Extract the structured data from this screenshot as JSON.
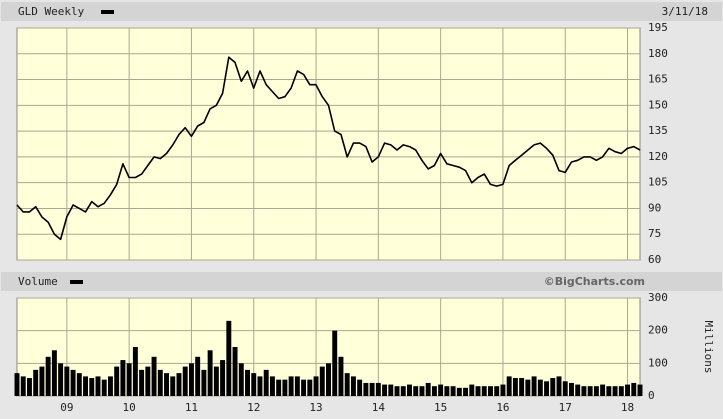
{
  "chart_data": [
    {
      "type": "line",
      "date_label": "3/11/18",
      "x": [
        2008.2,
        2008.3,
        2008.4,
        2008.5,
        2008.6,
        2008.7,
        2008.8,
        2008.9,
        2009.0,
        2009.1,
        2009.2,
        2009.3,
        2009.4,
        2009.5,
        2009.6,
        2009.7,
        2009.8,
        2009.9,
        2010.0,
        2010.1,
        2010.2,
        2010.3,
        2010.4,
        2010.5,
        2010.6,
        2010.7,
        2010.8,
        2010.9,
        2011.0,
        2011.1,
        2011.2,
        2011.3,
        2011.4,
        2011.5,
        2011.6,
        2011.7,
        2011.8,
        2011.9,
        2012.0,
        2012.1,
        2012.2,
        2012.3,
        2012.4,
        2012.5,
        2012.6,
        2012.7,
        2012.8,
        2012.9,
        2013.0,
        2013.1,
        2013.2,
        2013.3,
        2013.4,
        2013.5,
        2013.6,
        2013.7,
        2013.8,
        2013.9,
        2014.0,
        2014.1,
        2014.2,
        2014.3,
        2014.4,
        2014.5,
        2014.6,
        2014.7,
        2014.8,
        2014.9,
        2015.0,
        2015.1,
        2015.2,
        2015.3,
        2015.4,
        2015.5,
        2015.6,
        2015.7,
        2015.8,
        2015.9,
        2016.0,
        2016.1,
        2016.2,
        2016.3,
        2016.4,
        2016.5,
        2016.6,
        2016.7,
        2016.8,
        2016.9,
        2017.0,
        2017.1,
        2017.2,
        2017.3,
        2017.4,
        2017.5,
        2017.6,
        2017.7,
        2017.8,
        2017.9,
        2018.0,
        2018.1,
        2018.2
      ],
      "series": [
        {
          "name": "GLD Weekly",
          "color": "#000000",
          "values": [
            92,
            88,
            88,
            91,
            85,
            82,
            75,
            72,
            85,
            92,
            90,
            88,
            94,
            91,
            93,
            98,
            104,
            116,
            108,
            108,
            110,
            115,
            120,
            119,
            122,
            127,
            133,
            137,
            132,
            138,
            140,
            148,
            150,
            157,
            178,
            175,
            164,
            170,
            160,
            170,
            162,
            158,
            154,
            155,
            160,
            170,
            168,
            162,
            162,
            155,
            150,
            135,
            133,
            120,
            128,
            128,
            126,
            117,
            120,
            128,
            127,
            124,
            127,
            126,
            124,
            118,
            113,
            115,
            122,
            116,
            115,
            114,
            112,
            105,
            108,
            110,
            104,
            103,
            104,
            115,
            118,
            121,
            124,
            127,
            128,
            125,
            121,
            112,
            111,
            117,
            118,
            120,
            120,
            118,
            120,
            125,
            123,
            122,
            125,
            126,
            124
          ]
        }
      ],
      "xlim": [
        2008.2,
        2018.2
      ],
      "ylim": [
        60,
        195
      ],
      "yticks": [
        60,
        75,
        90,
        105,
        120,
        135,
        150,
        165,
        180,
        195
      ],
      "grid": true
    },
    {
      "type": "bar",
      "source": "©BigCharts.com",
      "ylabel": "Millions",
      "x": [
        2008.2,
        2008.3,
        2008.4,
        2008.5,
        2008.6,
        2008.7,
        2008.8,
        2008.9,
        2009.0,
        2009.1,
        2009.2,
        2009.3,
        2009.4,
        2009.5,
        2009.6,
        2009.7,
        2009.8,
        2009.9,
        2010.0,
        2010.1,
        2010.2,
        2010.3,
        2010.4,
        2010.5,
        2010.6,
        2010.7,
        2010.8,
        2010.9,
        2011.0,
        2011.1,
        2011.2,
        2011.3,
        2011.4,
        2011.5,
        2011.6,
        2011.7,
        2011.8,
        2011.9,
        2012.0,
        2012.1,
        2012.2,
        2012.3,
        2012.4,
        2012.5,
        2012.6,
        2012.7,
        2012.8,
        2012.9,
        2013.0,
        2013.1,
        2013.2,
        2013.3,
        2013.4,
        2013.5,
        2013.6,
        2013.7,
        2013.8,
        2013.9,
        2014.0,
        2014.1,
        2014.2,
        2014.3,
        2014.4,
        2014.5,
        2014.6,
        2014.7,
        2014.8,
        2014.9,
        2015.0,
        2015.1,
        2015.2,
        2015.3,
        2015.4,
        2015.5,
        2015.6,
        2015.7,
        2015.8,
        2015.9,
        2016.0,
        2016.1,
        2016.2,
        2016.3,
        2016.4,
        2016.5,
        2016.6,
        2016.7,
        2016.8,
        2016.9,
        2017.0,
        2017.1,
        2017.2,
        2017.3,
        2017.4,
        2017.5,
        2017.6,
        2017.7,
        2017.8,
        2017.9,
        2018.0,
        2018.1,
        2018.2
      ],
      "series": [
        {
          "name": "Volume",
          "color": "#000000",
          "values": [
            70,
            60,
            55,
            80,
            90,
            120,
            140,
            100,
            90,
            80,
            70,
            60,
            55,
            60,
            50,
            60,
            90,
            110,
            100,
            150,
            80,
            90,
            120,
            80,
            70,
            60,
            70,
            90,
            100,
            120,
            80,
            140,
            90,
            110,
            230,
            150,
            100,
            80,
            70,
            60,
            80,
            60,
            50,
            50,
            60,
            60,
            50,
            50,
            60,
            90,
            100,
            200,
            120,
            70,
            60,
            50,
            40,
            40,
            40,
            35,
            35,
            30,
            30,
            35,
            30,
            30,
            40,
            30,
            35,
            30,
            30,
            25,
            25,
            35,
            30,
            30,
            30,
            30,
            35,
            60,
            55,
            55,
            50,
            60,
            50,
            45,
            55,
            60,
            45,
            40,
            35,
            30,
            30,
            30,
            35,
            30,
            30,
            30,
            35,
            40,
            35
          ]
        }
      ],
      "xlim": [
        2008.2,
        2018.2
      ],
      "ylim": [
        0,
        300
      ],
      "yticks": [
        0,
        100,
        200,
        300
      ],
      "xticks": [
        {
          "value": 2009,
          "label": "09"
        },
        {
          "value": 2010,
          "label": "10"
        },
        {
          "value": 2011,
          "label": "11"
        },
        {
          "value": 2012,
          "label": "12"
        },
        {
          "value": 2013,
          "label": "13"
        },
        {
          "value": 2014,
          "label": "14"
        },
        {
          "value": 2015,
          "label": "15"
        },
        {
          "value": 2016,
          "label": "16"
        },
        {
          "value": 2017,
          "label": "17"
        },
        {
          "value": 2018,
          "label": "18"
        }
      ],
      "grid": true
    }
  ]
}
